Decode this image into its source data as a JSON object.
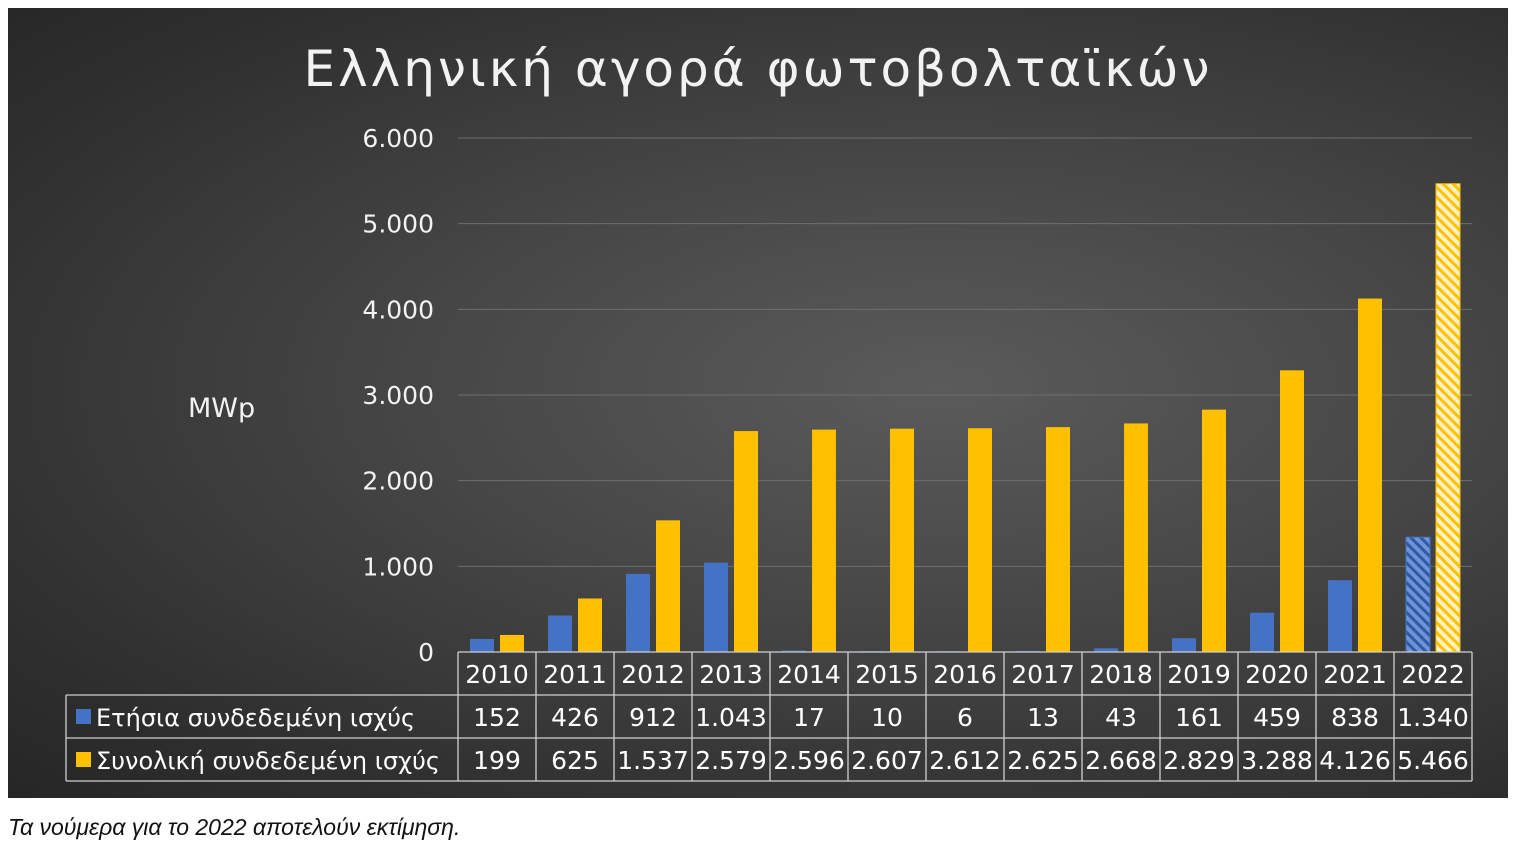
{
  "chart_data": {
    "type": "bar",
    "title": "Ελληνική αγορά φωτοβολταϊκών",
    "ylabel": "MWp",
    "xlabel": "",
    "ylim": [
      0,
      6000
    ],
    "yticks": [
      0,
      1000,
      2000,
      3000,
      4000,
      5000,
      6000
    ],
    "ytick_labels": [
      "0",
      "1.000",
      "2.000",
      "3.000",
      "4.000",
      "5.000",
      "6.000"
    ],
    "grid": true,
    "legend": "data-table-below",
    "categories": [
      "2010",
      "2011",
      "2012",
      "2013",
      "2014",
      "2015",
      "2016",
      "2017",
      "2018",
      "2019",
      "2020",
      "2021",
      "2022"
    ],
    "estimated_categories": [
      "2022"
    ],
    "series": [
      {
        "name": "Ετήσια συνδεδεμένη ισχύς",
        "color": "#4472c4",
        "values": [
          152,
          426,
          912,
          1043,
          17,
          10,
          6,
          13,
          43,
          161,
          459,
          838,
          1340
        ],
        "labels": [
          "152",
          "426",
          "912",
          "1.043",
          "17",
          "10",
          "6",
          "13",
          "43",
          "161",
          "459",
          "838",
          "1.340"
        ]
      },
      {
        "name": "Συνολική συνδεδεμένη ισχύς",
        "color": "#ffc000",
        "values": [
          199,
          625,
          1537,
          2579,
          2596,
          2607,
          2612,
          2625,
          2668,
          2829,
          3288,
          4126,
          5466
        ],
        "labels": [
          "199",
          "625",
          "1.537",
          "2.579",
          "2.596",
          "2.607",
          "2.612",
          "2.625",
          "2.668",
          "2.829",
          "3.288",
          "4.126",
          "5.466"
        ]
      }
    ]
  },
  "caption": "Τα νούμερα για το 2022 αποτελούν εκτίμηση."
}
